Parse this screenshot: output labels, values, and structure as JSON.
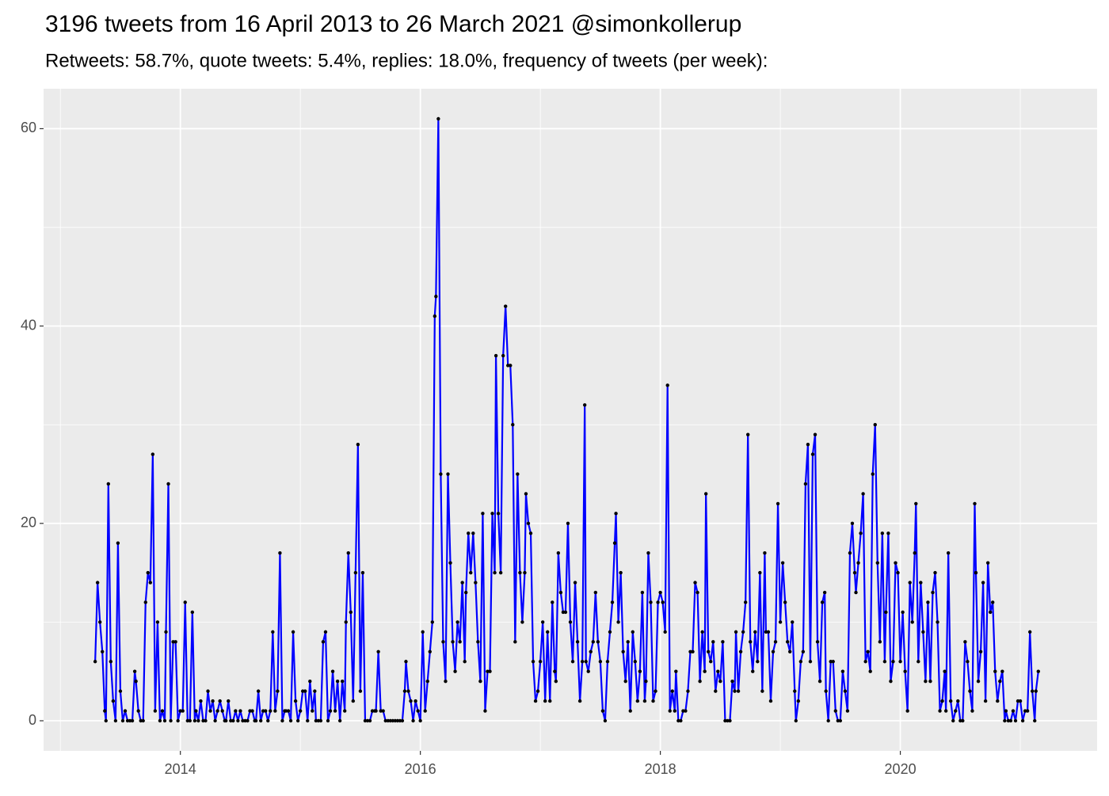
{
  "chart_data": {
    "type": "line",
    "title": "3196 tweets from 16 April 2013 to 26 March 2021 @simonkollerup",
    "subtitle": "Retweets: 58.7%, quote tweets: 5.4%, replies: 18.0%, frequency of tweets (per week):",
    "color": "#0000ff",
    "marker_color": "#000000",
    "grid": true,
    "xlim": [
      2012.86,
      2021.64
    ],
    "xticks": [
      2014,
      2016,
      2018,
      2020
    ],
    "ylim": [
      -3.05,
      64.05
    ],
    "yticks": [
      0,
      20,
      40,
      60
    ],
    "x": [
      2013.29,
      2013.31,
      2013.33,
      2013.35,
      2013.37,
      2013.38,
      2013.4,
      2013.42,
      2013.44,
      2013.46,
      2013.48,
      2013.5,
      2013.52,
      2013.54,
      2013.56,
      2013.58,
      2013.6,
      2013.62,
      2013.63,
      2013.65,
      2013.67,
      2013.69,
      2013.71,
      2013.73,
      2013.75,
      2013.77,
      2013.79,
      2013.81,
      2013.83,
      2013.85,
      2013.87,
      2013.88,
      2013.9,
      2013.92,
      2013.94,
      2013.96,
      2013.98,
      2014,
      2014.02,
      2014.04,
      2014.06,
      2014.08,
      2014.1,
      2014.12,
      2014.13,
      2014.15,
      2014.17,
      2014.19,
      2014.21,
      2014.23,
      2014.25,
      2014.27,
      2014.29,
      2014.31,
      2014.33,
      2014.35,
      2014.37,
      2014.38,
      2014.4,
      2014.42,
      2014.44,
      2014.46,
      2014.48,
      2014.5,
      2014.52,
      2014.54,
      2014.56,
      2014.58,
      2014.6,
      2014.62,
      2014.63,
      2014.65,
      2014.67,
      2014.69,
      2014.71,
      2014.73,
      2014.75,
      2014.77,
      2014.79,
      2014.81,
      2014.83,
      2014.85,
      2014.87,
      2014.88,
      2014.9,
      2014.92,
      2014.94,
      2014.96,
      2014.98,
      2015,
      2015.02,
      2015.04,
      2015.06,
      2015.08,
      2015.1,
      2015.12,
      2015.13,
      2015.15,
      2015.17,
      2015.19,
      2015.21,
      2015.23,
      2015.25,
      2015.27,
      2015.29,
      2015.31,
      2015.33,
      2015.35,
      2015.37,
      2015.38,
      2015.4,
      2015.42,
      2015.44,
      2015.46,
      2015.48,
      2015.5,
      2015.52,
      2015.54,
      2015.56,
      2015.58,
      2015.6,
      2015.62,
      2015.63,
      2015.65,
      2015.67,
      2015.69,
      2015.71,
      2015.73,
      2015.75,
      2015.77,
      2015.79,
      2015.81,
      2015.83,
      2015.85,
      2015.87,
      2015.88,
      2015.9,
      2015.92,
      2015.94,
      2015.96,
      2015.98,
      2016,
      2016.02,
      2016.04,
      2016.06,
      2016.08,
      2016.1,
      2016.12,
      2016.13,
      2016.15,
      2016.17,
      2016.19,
      2016.21,
      2016.23,
      2016.25,
      2016.27,
      2016.29,
      2016.31,
      2016.33,
      2016.35,
      2016.37,
      2016.38,
      2016.4,
      2016.42,
      2016.44,
      2016.46,
      2016.48,
      2016.5,
      2016.52,
      2016.54,
      2016.56,
      2016.58,
      2016.6,
      2016.62,
      2016.63,
      2016.65,
      2016.67,
      2016.69,
      2016.71,
      2016.73,
      2016.75,
      2016.77,
      2016.79,
      2016.81,
      2016.83,
      2016.85,
      2016.87,
      2016.88,
      2016.9,
      2016.92,
      2016.94,
      2016.96,
      2016.98,
      2017,
      2017.02,
      2017.04,
      2017.06,
      2017.08,
      2017.1,
      2017.12,
      2017.13,
      2017.15,
      2017.17,
      2017.19,
      2017.21,
      2017.23,
      2017.25,
      2017.27,
      2017.29,
      2017.31,
      2017.33,
      2017.35,
      2017.37,
      2017.38,
      2017.4,
      2017.42,
      2017.44,
      2017.46,
      2017.48,
      2017.5,
      2017.52,
      2017.54,
      2017.56,
      2017.58,
      2017.6,
      2017.62,
      2017.63,
      2017.65,
      2017.67,
      2017.69,
      2017.71,
      2017.73,
      2017.75,
      2017.77,
      2017.79,
      2017.81,
      2017.83,
      2017.85,
      2017.87,
      2017.88,
      2017.9,
      2017.92,
      2017.94,
      2017.96,
      2017.98,
      2018,
      2018.02,
      2018.04,
      2018.06,
      2018.08,
      2018.1,
      2018.12,
      2018.13,
      2018.15,
      2018.17,
      2018.19,
      2018.21,
      2018.23,
      2018.25,
      2018.27,
      2018.29,
      2018.31,
      2018.33,
      2018.35,
      2018.37,
      2018.38,
      2018.4,
      2018.42,
      2018.44,
      2018.46,
      2018.48,
      2018.5,
      2018.52,
      2018.54,
      2018.56,
      2018.58,
      2018.6,
      2018.62,
      2018.63,
      2018.65,
      2018.67,
      2018.69,
      2018.71,
      2018.73,
      2018.75,
      2018.77,
      2018.79,
      2018.81,
      2018.83,
      2018.85,
      2018.87,
      2018.88,
      2018.9,
      2018.92,
      2018.94,
      2018.96,
      2018.98,
      2019,
      2019.02,
      2019.04,
      2019.06,
      2019.08,
      2019.1,
      2019.12,
      2019.13,
      2019.15,
      2019.17,
      2019.19,
      2019.21,
      2019.23,
      2019.25,
      2019.27,
      2019.29,
      2019.31,
      2019.33,
      2019.35,
      2019.37,
      2019.38,
      2019.4,
      2019.42,
      2019.44,
      2019.46,
      2019.48,
      2019.5,
      2019.52,
      2019.54,
      2019.56,
      2019.58,
      2019.6,
      2019.62,
      2019.63,
      2019.65,
      2019.67,
      2019.69,
      2019.71,
      2019.73,
      2019.75,
      2019.77,
      2019.79,
      2019.81,
      2019.83,
      2019.85,
      2019.87,
      2019.88,
      2019.9,
      2019.92,
      2019.94,
      2019.96,
      2019.98,
      2020,
      2020.02,
      2020.04,
      2020.06,
      2020.08,
      2020.1,
      2020.12,
      2020.13,
      2020.15,
      2020.17,
      2020.19,
      2020.21,
      2020.23,
      2020.25,
      2020.27,
      2020.29,
      2020.31,
      2020.33,
      2020.35,
      2020.37,
      2020.38,
      2020.4,
      2020.42,
      2020.44,
      2020.46,
      2020.48,
      2020.5,
      2020.52,
      2020.54,
      2020.56,
      2020.58,
      2020.6,
      2020.62,
      2020.63,
      2020.65,
      2020.67,
      2020.69,
      2020.71,
      2020.73,
      2020.75,
      2020.77,
      2020.79,
      2020.81,
      2020.83,
      2020.85,
      2020.87,
      2020.88,
      2020.9,
      2020.92,
      2020.94,
      2020.96,
      2020.98,
      2021,
      2021.02,
      2021.04,
      2021.06,
      2021.08,
      2021.1,
      2021.12,
      2021.13,
      2021.15
    ],
    "values": [
      6,
      14,
      10,
      7,
      1,
      0,
      24,
      6,
      2,
      0,
      18,
      3,
      0,
      1,
      0,
      0,
      0,
      5,
      4,
      1,
      0,
      0,
      12,
      15,
      14,
      27,
      1,
      10,
      0,
      1,
      0,
      9,
      24,
      0,
      8,
      8,
      0,
      1,
      1,
      12,
      0,
      0,
      11,
      0,
      1,
      0,
      2,
      0,
      0,
      3,
      1,
      2,
      0,
      1,
      2,
      1,
      0,
      0,
      2,
      0,
      0,
      1,
      0,
      1,
      0,
      0,
      0,
      1,
      1,
      0,
      0,
      3,
      0,
      1,
      1,
      0,
      1,
      9,
      1,
      3,
      17,
      0,
      1,
      1,
      1,
      0,
      9,
      2,
      0,
      1,
      3,
      3,
      0,
      4,
      1,
      3,
      0,
      0,
      0,
      8,
      9,
      0,
      1,
      5,
      1,
      4,
      0,
      4,
      1,
      10,
      17,
      11,
      2,
      15,
      28,
      3,
      15,
      0,
      0,
      0,
      1,
      1,
      1,
      7,
      1,
      1,
      0,
      0,
      0,
      0,
      0,
      0,
      0,
      0,
      3,
      6,
      3,
      2,
      0,
      2,
      1,
      0,
      9,
      1,
      4,
      7,
      10,
      41,
      43,
      61,
      25,
      8,
      4,
      25,
      16,
      8,
      5,
      10,
      8,
      14,
      6,
      13,
      19,
      15,
      19,
      14,
      8,
      4,
      21,
      1,
      5,
      5,
      21,
      15,
      37,
      21,
      15,
      37,
      42,
      36,
      36,
      30,
      8,
      25,
      15,
      10,
      15,
      23,
      20,
      19,
      6,
      2,
      3,
      6,
      10,
      2,
      9,
      2,
      12,
      5,
      4,
      17,
      13,
      11,
      11,
      20,
      10,
      6,
      14,
      8,
      2,
      6,
      32,
      6,
      5,
      7,
      8,
      13,
      8,
      6,
      1,
      0,
      6,
      9,
      12,
      18,
      21,
      10,
      15,
      7,
      4,
      8,
      1,
      9,
      6,
      2,
      5,
      13,
      2,
      4,
      17,
      12,
      2,
      3,
      12,
      13,
      12,
      9,
      34,
      1,
      3,
      1,
      5,
      0,
      0,
      1,
      1,
      3,
      7,
      7,
      14,
      13,
      4,
      9,
      5,
      23,
      7,
      6,
      8,
      3,
      5,
      4,
      8,
      0,
      0,
      0,
      4,
      3,
      9,
      3,
      7,
      9,
      12,
      29,
      8,
      5,
      9,
      6,
      15,
      3,
      17,
      9,
      9,
      2,
      7,
      8,
      22,
      10,
      16,
      12,
      8,
      7,
      10,
      3,
      0,
      2,
      6,
      7,
      24,
      28,
      6,
      27,
      29,
      8,
      4,
      12,
      13,
      3,
      0,
      6,
      6,
      1,
      0,
      0,
      5,
      3,
      1,
      17,
      20,
      15,
      13,
      16,
      19,
      23,
      6,
      7,
      5,
      25,
      30,
      16,
      8,
      19,
      6,
      11,
      19,
      4,
      6,
      16,
      15,
      6,
      11,
      5,
      1,
      14,
      10,
      17,
      22,
      6,
      14,
      9,
      4,
      12,
      4,
      13,
      15,
      10,
      1,
      2,
      5,
      1,
      17,
      2,
      0,
      1,
      2,
      0,
      0,
      8,
      6,
      3,
      1,
      22,
      15,
      4,
      7,
      14,
      2,
      16,
      11,
      12,
      5,
      2,
      4,
      5,
      0,
      1,
      0,
      0,
      1,
      0,
      2,
      2,
      0,
      1,
      1,
      9,
      3,
      0,
      3,
      5
    ]
  }
}
